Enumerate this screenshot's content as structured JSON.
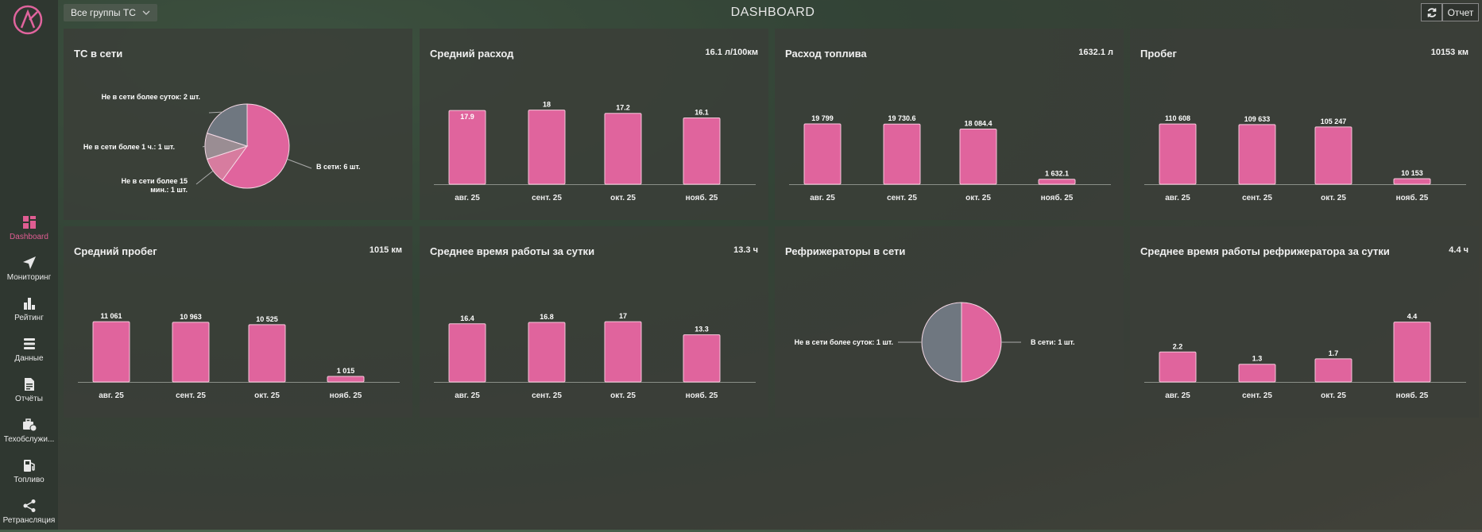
{
  "app": {
    "title": "DASHBOARD",
    "group_select": "Все группы ТС",
    "report_label": "Отчет"
  },
  "sidebar": {
    "items": [
      {
        "label": "Dashboard",
        "icon": "dashboard-icon",
        "active": true
      },
      {
        "label": "Мониторинг",
        "icon": "navigation-arrow-icon",
        "active": false
      },
      {
        "label": "Рейтинг",
        "icon": "bar-chart-icon",
        "active": false
      },
      {
        "label": "Данные",
        "icon": "database-icon",
        "active": false
      },
      {
        "label": "Отчёты",
        "icon": "document-icon",
        "active": false
      },
      {
        "label": "Техобслужи...",
        "icon": "maintenance-icon",
        "active": false
      },
      {
        "label": "Топливо",
        "icon": "fuel-icon",
        "active": false
      },
      {
        "label": "Ретрансляция",
        "icon": "share-icon",
        "active": false
      }
    ]
  },
  "colors": {
    "accent": "#e0649d",
    "gray": "#6e7580",
    "slate": "#6f7780"
  },
  "cards": [
    {
      "title": "ТС в сети",
      "value": ""
    },
    {
      "title": "Средний расход",
      "value": "16.1 л/100км"
    },
    {
      "title": "Расход топлива",
      "value": "1632.1 л"
    },
    {
      "title": "Пробег",
      "value": "10153 км"
    },
    {
      "title": "Средний пробег",
      "value": "1015 км"
    },
    {
      "title": "Среднее время работы за сутки",
      "value": "13.3 ч"
    },
    {
      "title": "Рефрижераторы в сети",
      "value": ""
    },
    {
      "title": "Среднее время работы рефрижератора за сутки",
      "value": "4.4 ч"
    }
  ],
  "chart_data": [
    {
      "type": "pie",
      "slices": [
        {
          "label": "В сети: 6 шт.",
          "value": 6,
          "color": "#e0649d"
        },
        {
          "label": "Не в сети более 15 мин.: 1 шт.",
          "value": 1,
          "color": "#d77c9f"
        },
        {
          "label": "Не в сети более 1 ч.: 1 шт.",
          "value": 1,
          "color": "#9a8d93"
        },
        {
          "label": "Не в сети более суток: 2 шт.",
          "value": 2,
          "color": "#6f7780"
        }
      ]
    },
    {
      "type": "bar",
      "categories": [
        "авг. 25",
        "сент. 25",
        "окт. 25",
        "нояб. 25"
      ],
      "values": [
        17.9,
        18,
        17.2,
        16.1
      ],
      "labels": [
        "17.9",
        "18",
        "17.2",
        "16.1"
      ],
      "ylim": [
        0,
        18.5
      ]
    },
    {
      "type": "bar",
      "categories": [
        "авг. 25",
        "сент. 25",
        "окт. 25",
        "нояб. 25"
      ],
      "values": [
        19799,
        19730.6,
        18084.4,
        1632.1
      ],
      "labels": [
        "19 799",
        "19 730.6",
        "18 084.4",
        "1 632.1"
      ],
      "ylim": [
        0,
        25000
      ]
    },
    {
      "type": "bar",
      "categories": [
        "авг. 25",
        "сент. 25",
        "окт. 25",
        "нояб. 25"
      ],
      "values": [
        110608,
        109633,
        105247,
        10153
      ],
      "labels": [
        "110 608",
        "109 633",
        "105 247",
        "10 153"
      ],
      "ylim": [
        0,
        140000
      ]
    },
    {
      "type": "bar",
      "categories": [
        "авг. 25",
        "сент. 25",
        "окт. 25",
        "нояб. 25"
      ],
      "values": [
        11061,
        10963,
        10525,
        1015
      ],
      "labels": [
        "11 061",
        "10 963",
        "10 525",
        "1 015"
      ],
      "ylim": [
        0,
        14000
      ]
    },
    {
      "type": "bar",
      "categories": [
        "авг. 25",
        "сент. 25",
        "окт. 25",
        "нояб. 25"
      ],
      "values": [
        16.4,
        16.8,
        17,
        13.3
      ],
      "labels": [
        "16.4",
        "16.8",
        "17",
        "13.3"
      ],
      "ylim": [
        0,
        21.5
      ]
    },
    {
      "type": "pie",
      "slices": [
        {
          "label": "В сети: 1 шт.",
          "value": 1,
          "color": "#e0649d"
        },
        {
          "label": "Не в сети более суток: 1 шт.",
          "value": 1,
          "color": "#6f7780"
        }
      ]
    },
    {
      "type": "bar",
      "categories": [
        "авг. 25",
        "сент. 25",
        "окт. 25",
        "нояб. 25"
      ],
      "values": [
        2.2,
        1.3,
        1.7,
        4.4
      ],
      "labels": [
        "2.2",
        "1.3",
        "1.7",
        "4.4"
      ],
      "ylim": [
        0,
        5.6
      ]
    }
  ]
}
